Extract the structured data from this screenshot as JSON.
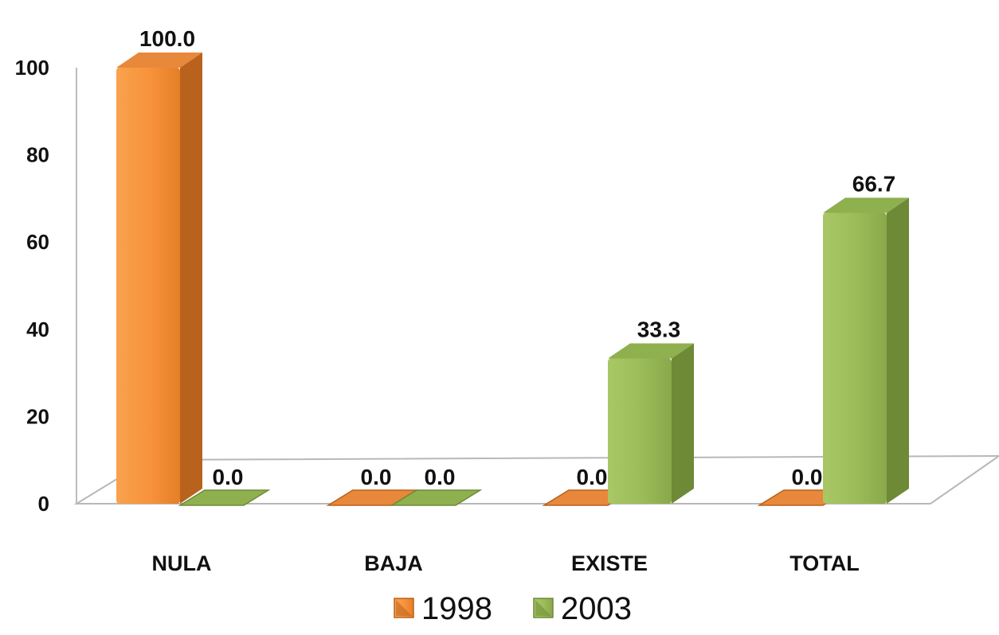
{
  "chart_data": {
    "type": "bar",
    "title": "",
    "xlabel": "",
    "ylabel": "",
    "categories": [
      "NULA",
      "BAJA",
      "EXISTE",
      "TOTAL"
    ],
    "series": [
      {
        "name": "1998",
        "values": [
          100.0,
          0.0,
          0.0,
          0.0
        ],
        "labels": [
          "100.0",
          "0.0",
          "0.0",
          "0.0"
        ],
        "color": "#f7923a"
      },
      {
        "name": "2003",
        "values": [
          0.0,
          0.0,
          33.3,
          66.7
        ],
        "labels": [
          "0.0",
          "0.0",
          "33.3",
          "66.7"
        ],
        "color": "#9bbb59"
      }
    ],
    "y_ticks": [
      "0",
      "20",
      "40",
      "60",
      "80",
      "100"
    ],
    "ylim": [
      0,
      100
    ],
    "grid": false,
    "legend_position": "bottom",
    "style": "3d-column"
  }
}
